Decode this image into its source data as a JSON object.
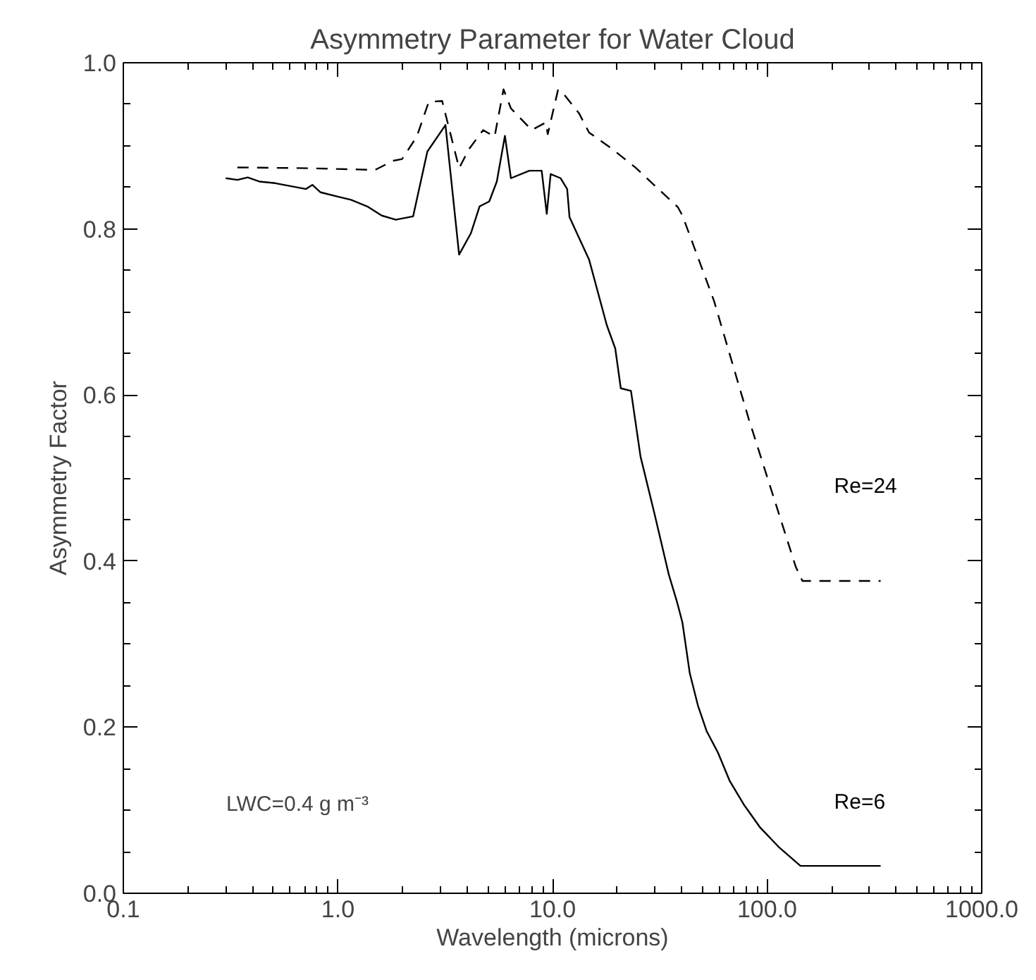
{
  "chart_data": {
    "type": "line",
    "title": "Asymmetry Parameter for Water Cloud",
    "xlabel": "Wavelength (microns)",
    "ylabel": "Asymmetry Factor",
    "log": "x",
    "grid": false,
    "legend": false,
    "marker": "none",
    "xlim": [
      0.1,
      1000
    ],
    "ylim": [
      0,
      1
    ],
    "xticks": [
      {
        "value": 0.1,
        "label": "0.1"
      },
      {
        "value": 1,
        "label": "1.0"
      },
      {
        "value": 10,
        "label": "10.0"
      },
      {
        "value": 100,
        "label": "100.0"
      },
      {
        "value": 1000,
        "label": "1000.0"
      }
    ],
    "yticks": [
      {
        "value": 0,
        "label": "0.0"
      },
      {
        "value": 0.2,
        "label": "0.2"
      },
      {
        "value": 0.4,
        "label": "0.4"
      },
      {
        "value": 0.6,
        "label": "0.6"
      },
      {
        "value": 0.8,
        "label": "0.8"
      },
      {
        "value": 1,
        "label": "1.0"
      }
    ],
    "series": [
      {
        "name": "Re=6",
        "color": "#000000",
        "line_style": "solid",
        "x": [
          0.3,
          0.34,
          0.38,
          0.43,
          0.51,
          0.71,
          0.76,
          0.83,
          0.99,
          1.15,
          1.37,
          1.6,
          1.86,
          2.24,
          2.61,
          3.17,
          3.67,
          4.17,
          4.57,
          5.07,
          5.5,
          6.0,
          6.4,
          7.8,
          8.9,
          9.4,
          9.8,
          10.9,
          11.7,
          12.0,
          14.8,
          17.9,
          19.6,
          20.8,
          23.2,
          25.7,
          29.8,
          34.8,
          38.1,
          40.3,
          43.6,
          47.6,
          52.3,
          59.1,
          67.0,
          77.8,
          92.9,
          113,
          143,
          338
        ],
        "values": [
          0.861,
          0.859,
          0.862,
          0.857,
          0.855,
          0.848,
          0.853,
          0.844,
          0.839,
          0.835,
          0.827,
          0.816,
          0.811,
          0.815,
          0.893,
          0.925,
          0.769,
          0.795,
          0.827,
          0.833,
          0.857,
          0.912,
          0.861,
          0.87,
          0.87,
          0.818,
          0.866,
          0.861,
          0.848,
          0.814,
          0.763,
          0.684,
          0.656,
          0.608,
          0.605,
          0.526,
          0.458,
          0.384,
          0.35,
          0.326,
          0.265,
          0.226,
          0.195,
          0.169,
          0.135,
          0.107,
          0.079,
          0.056,
          0.033,
          0.033
        ]
      },
      {
        "name": "Re=24",
        "color": "#000000",
        "line_style": "dashed",
        "x": [
          0.34,
          0.73,
          1.49,
          1.81,
          1.99,
          2.33,
          2.65,
          3.06,
          3.67,
          4.08,
          4.75,
          5.37,
          5.91,
          6.4,
          8.0,
          9.3,
          9.5,
          10.6,
          10.9,
          13.3,
          14.8,
          19.0,
          24.3,
          38.4,
          40.3,
          56.6,
          82.1,
          136,
          146,
          338
        ],
        "values": [
          0.874,
          0.873,
          0.871,
          0.882,
          0.884,
          0.911,
          0.953,
          0.954,
          0.873,
          0.896,
          0.919,
          0.911,
          0.968,
          0.945,
          0.919,
          0.928,
          0.914,
          0.967,
          0.967,
          0.939,
          0.916,
          0.896,
          0.874,
          0.826,
          0.816,
          0.713,
          0.571,
          0.393,
          0.376,
          0.376
        ]
      }
    ],
    "annotations": [
      "LWC=0.4 g m⁻³"
    ]
  }
}
